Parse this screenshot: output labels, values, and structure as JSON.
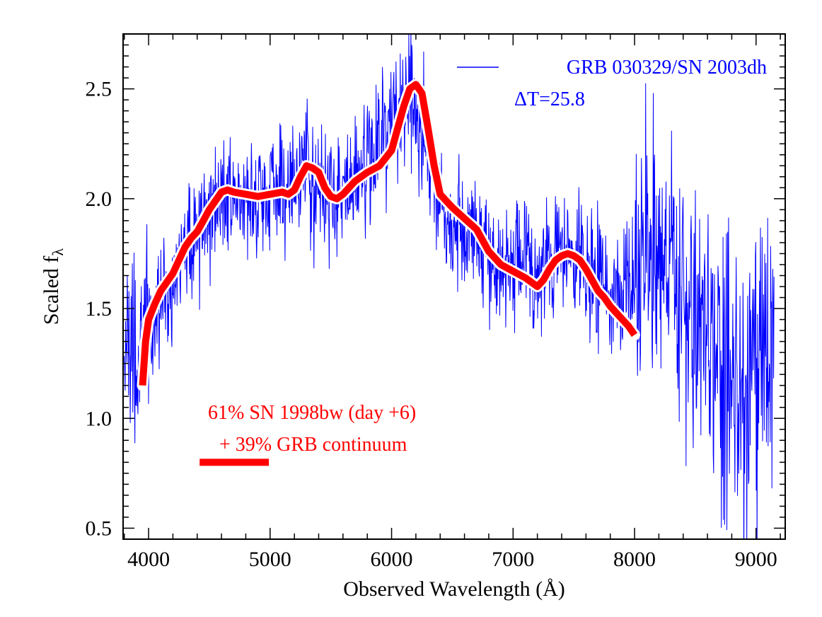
{
  "chart_data": {
    "type": "line",
    "xlabel": "Observed Wavelength (Å)",
    "ylabel": "Scaled f",
    "ylabel_subscript": "λ",
    "xlim": [
      3790,
      9240
    ],
    "ylim": [
      0.45,
      2.75
    ],
    "xticks": [
      4000,
      5000,
      6000,
      7000,
      8000,
      9000
    ],
    "xtick_labels": [
      "4000",
      "5000",
      "6000",
      "7000",
      "8000",
      "9000"
    ],
    "yticks": [
      0.5,
      1.0,
      1.5,
      2.0,
      2.5
    ],
    "ytick_labels": [
      "0.5",
      "1.0",
      "1.5",
      "2.0",
      "2.5"
    ],
    "grid": false,
    "legend_position": "top-right",
    "colors": {
      "observed": "#0000ff",
      "model": "#ff0000",
      "model_outline": "#ffffff",
      "axes": "#000000"
    },
    "series": [
      {
        "name": "GRB 030329/SN 2003dh",
        "annotation": "ΔT=25.8",
        "style": "thin-noisy",
        "x": [
          3800,
          3850,
          3900,
          3950,
          4000,
          4050,
          4100,
          4150,
          4200,
          4300,
          4400,
          4500,
          4600,
          4700,
          4800,
          4900,
          5000,
          5100,
          5200,
          5300,
          5400,
          5500,
          5600,
          5700,
          5800,
          5900,
          6000,
          6100,
          6200,
          6300,
          6400,
          6500,
          6600,
          6700,
          6800,
          6900,
          7000,
          7100,
          7200,
          7300,
          7400,
          7500,
          7600,
          7700,
          7800,
          7900,
          8000,
          8100,
          8200,
          8300,
          8400,
          8500,
          8600,
          8700,
          8800,
          8900,
          9000,
          9100,
          9150
        ],
        "y": [
          1.4,
          1.35,
          1.3,
          1.32,
          1.45,
          1.5,
          1.55,
          1.6,
          1.65,
          1.8,
          1.85,
          1.95,
          2.0,
          2.02,
          2.0,
          2.0,
          2.02,
          2.05,
          2.1,
          2.15,
          2.05,
          2.0,
          2.05,
          2.1,
          2.15,
          2.25,
          2.35,
          2.45,
          2.45,
          2.25,
          2.0,
          1.9,
          1.85,
          1.85,
          1.75,
          1.7,
          1.7,
          1.68,
          1.65,
          1.72,
          1.75,
          1.7,
          1.7,
          1.62,
          1.55,
          1.6,
          1.65,
          1.8,
          1.85,
          1.7,
          1.5,
          1.45,
          1.35,
          1.2,
          1.15,
          1.05,
          1.15,
          1.25,
          1.3
        ],
        "noise_amplitude": 0.2
      },
      {
        "name": "61% SN 1998bw (day +6)",
        "name_line2": "+ 39% GRB continuum",
        "style": "thick",
        "x": [
          3950,
          3975,
          4000,
          4050,
          4100,
          4150,
          4200,
          4250,
          4300,
          4350,
          4400,
          4450,
          4500,
          4550,
          4600,
          4650,
          4700,
          4800,
          4900,
          5000,
          5100,
          5150,
          5200,
          5250,
          5300,
          5350,
          5400,
          5450,
          5500,
          5550,
          5600,
          5650,
          5700,
          5800,
          5900,
          6000,
          6050,
          6100,
          6150,
          6200,
          6250,
          6300,
          6350,
          6400,
          6500,
          6600,
          6700,
          6800,
          6900,
          7000,
          7100,
          7150,
          7200,
          7250,
          7300,
          7350,
          7400,
          7450,
          7500,
          7550,
          7600,
          7650,
          7700,
          7750,
          7800,
          7850,
          7900,
          7950,
          8000
        ],
        "y": [
          1.15,
          1.35,
          1.45,
          1.52,
          1.58,
          1.62,
          1.66,
          1.72,
          1.78,
          1.82,
          1.85,
          1.9,
          1.95,
          1.99,
          2.03,
          2.04,
          2.03,
          2.02,
          2.01,
          2.02,
          2.03,
          2.02,
          2.04,
          2.1,
          2.15,
          2.14,
          2.12,
          2.05,
          2.01,
          2.0,
          2.02,
          2.05,
          2.08,
          2.12,
          2.15,
          2.22,
          2.32,
          2.42,
          2.5,
          2.52,
          2.48,
          2.32,
          2.15,
          2.02,
          1.96,
          1.91,
          1.86,
          1.76,
          1.7,
          1.67,
          1.64,
          1.62,
          1.6,
          1.63,
          1.68,
          1.72,
          1.74,
          1.75,
          1.74,
          1.72,
          1.68,
          1.63,
          1.58,
          1.55,
          1.51,
          1.48,
          1.45,
          1.42,
          1.38
        ]
      }
    ],
    "legend_sample_model": {
      "x": [
        4420,
        4990
      ],
      "y": 0.8
    }
  }
}
